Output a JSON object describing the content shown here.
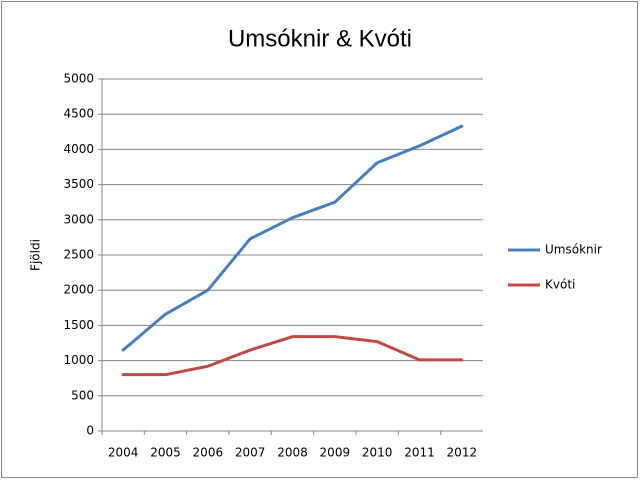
{
  "chart_data": {
    "type": "line",
    "title": "Umsóknir & Kvóti",
    "y_label": "Fjöldi",
    "categories": [
      "2004",
      "2005",
      "2006",
      "2007",
      "2008",
      "2009",
      "2010",
      "2011",
      "2012"
    ],
    "series": [
      {
        "name": "Umsóknir",
        "color": "#4a7ebb",
        "values": [
          1150,
          1660,
          2000,
          2730,
          3030,
          3250,
          3810,
          4050,
          4330
        ]
      },
      {
        "name": "Kvóti",
        "color": "#be4b48",
        "values": [
          800,
          800,
          920,
          1150,
          1340,
          1340,
          1270,
          1010,
          1010
        ]
      }
    ],
    "ylim": [
      0,
      5000
    ],
    "yticks": [
      0,
      500,
      1000,
      1500,
      2000,
      2500,
      3000,
      3500,
      4000,
      4500,
      5000
    ],
    "grid": true,
    "legend": "right"
  }
}
